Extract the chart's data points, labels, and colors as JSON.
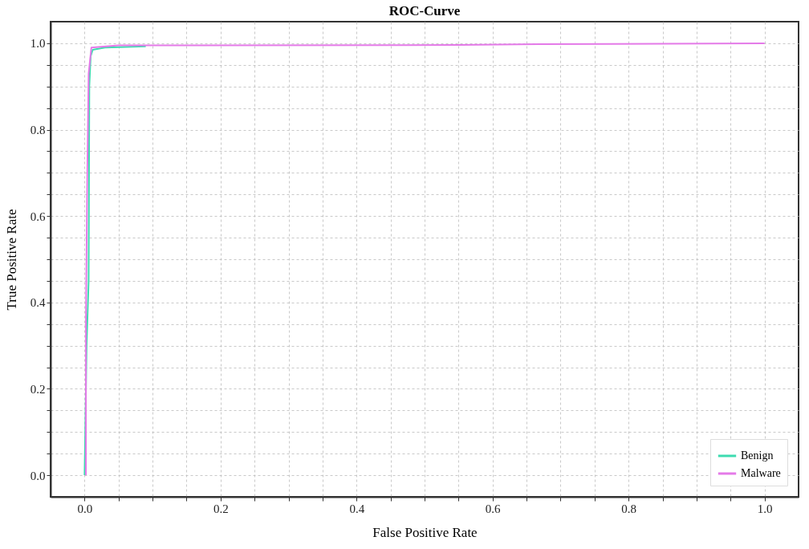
{
  "chart_data": {
    "type": "line",
    "title": "ROC-Curve",
    "xlabel": "False Positive Rate",
    "ylabel": "True Positive Rate",
    "xlim": [
      -0.05,
      1.05
    ],
    "ylim": [
      -0.05,
      1.05
    ],
    "xticks": [
      {
        "value": 0.0,
        "label": "0.0"
      },
      {
        "value": 0.05,
        "label": null
      },
      {
        "value": 0.1,
        "label": null
      },
      {
        "value": 0.15,
        "label": null
      },
      {
        "value": 0.2,
        "label": "0.2"
      },
      {
        "value": 0.25,
        "label": null
      },
      {
        "value": 0.3,
        "label": null
      },
      {
        "value": 0.35,
        "label": null
      },
      {
        "value": 0.4,
        "label": "0.4"
      },
      {
        "value": 0.45,
        "label": null
      },
      {
        "value": 0.5,
        "label": null
      },
      {
        "value": 0.55,
        "label": null
      },
      {
        "value": 0.6,
        "label": "0.6"
      },
      {
        "value": 0.65,
        "label": null
      },
      {
        "value": 0.7,
        "label": null
      },
      {
        "value": 0.75,
        "label": null
      },
      {
        "value": 0.8,
        "label": "0.8"
      },
      {
        "value": 0.85,
        "label": null
      },
      {
        "value": 0.9,
        "label": null
      },
      {
        "value": 0.95,
        "label": null
      },
      {
        "value": 1.0,
        "label": "1.0"
      }
    ],
    "yticks": [
      {
        "value": 0.0,
        "label": "0.0"
      },
      {
        "value": 0.05,
        "label": null
      },
      {
        "value": 0.1,
        "label": null
      },
      {
        "value": 0.15,
        "label": null
      },
      {
        "value": 0.2,
        "label": "0.2"
      },
      {
        "value": 0.25,
        "label": null
      },
      {
        "value": 0.3,
        "label": null
      },
      {
        "value": 0.35,
        "label": null
      },
      {
        "value": 0.4,
        "label": "0.4"
      },
      {
        "value": 0.45,
        "label": null
      },
      {
        "value": 0.5,
        "label": null
      },
      {
        "value": 0.55,
        "label": null
      },
      {
        "value": 0.6,
        "label": "0.6"
      },
      {
        "value": 0.65,
        "label": null
      },
      {
        "value": 0.7,
        "label": null
      },
      {
        "value": 0.75,
        "label": null
      },
      {
        "value": 0.8,
        "label": "0.8"
      },
      {
        "value": 0.85,
        "label": null
      },
      {
        "value": 0.9,
        "label": null
      },
      {
        "value": 0.95,
        "label": null
      },
      {
        "value": 1.0,
        "label": "1.0"
      }
    ],
    "grid": true,
    "legend": "bottom right",
    "line_style": "solid",
    "marker": "none",
    "series": [
      {
        "name": "Benign",
        "color": "#3ddbb0",
        "x": [
          0.0,
          0.003,
          0.006,
          0.007,
          0.009,
          0.012,
          0.03,
          0.09
        ],
        "values": [
          0.0,
          0.3,
          0.45,
          0.9,
          0.97,
          0.985,
          0.99,
          0.993
        ]
      },
      {
        "name": "Malware",
        "color": "#e47ae8",
        "x": [
          0.002,
          0.002,
          0.004,
          0.006,
          0.008,
          0.01,
          0.05,
          0.55,
          0.67,
          1.0
        ],
        "values": [
          0.0,
          0.35,
          0.7,
          0.93,
          0.96,
          0.99,
          0.995,
          0.996,
          0.998,
          1.0
        ]
      }
    ]
  }
}
